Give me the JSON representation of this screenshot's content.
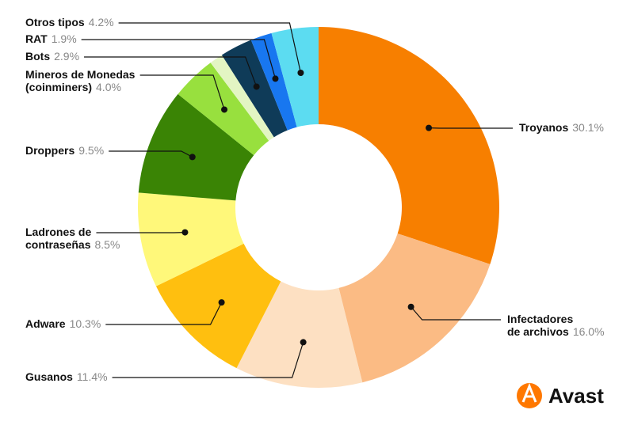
{
  "chart_data": {
    "type": "donut",
    "categories": [
      [
        "Troyanos"
      ],
      [
        "Infectadores",
        "de archivos"
      ],
      [
        "Gusanos"
      ],
      [
        "Adware"
      ],
      [
        "Ladrones de",
        "contraseñas"
      ],
      [
        "Droppers"
      ],
      [
        "Mineros de Monedas",
        "(coinminers)"
      ],
      null,
      [
        "Bots"
      ],
      [
        "RAT"
      ],
      [
        "Otros tipos"
      ]
    ],
    "values": [
      30.1,
      16.0,
      11.4,
      10.3,
      8.5,
      9.5,
      4.0,
      1.2,
      2.9,
      1.9,
      4.2
    ],
    "value_labels": [
      "30.1%",
      "16.0%",
      "11.4%",
      "10.3%",
      "8.5%",
      "9.5%",
      "4.0%",
      null,
      "2.9%",
      "1.9%",
      "4.2%"
    ],
    "colors": [
      "#f77f00",
      "#fbbb84",
      "#fde0c2",
      "#ffbf0f",
      "#fff87a",
      "#3a8405",
      "#98e03e",
      "#e3f5c3",
      "#0f3b58",
      "#1877f0",
      "#5cdcf1"
    ]
  },
  "brand": "Avast"
}
